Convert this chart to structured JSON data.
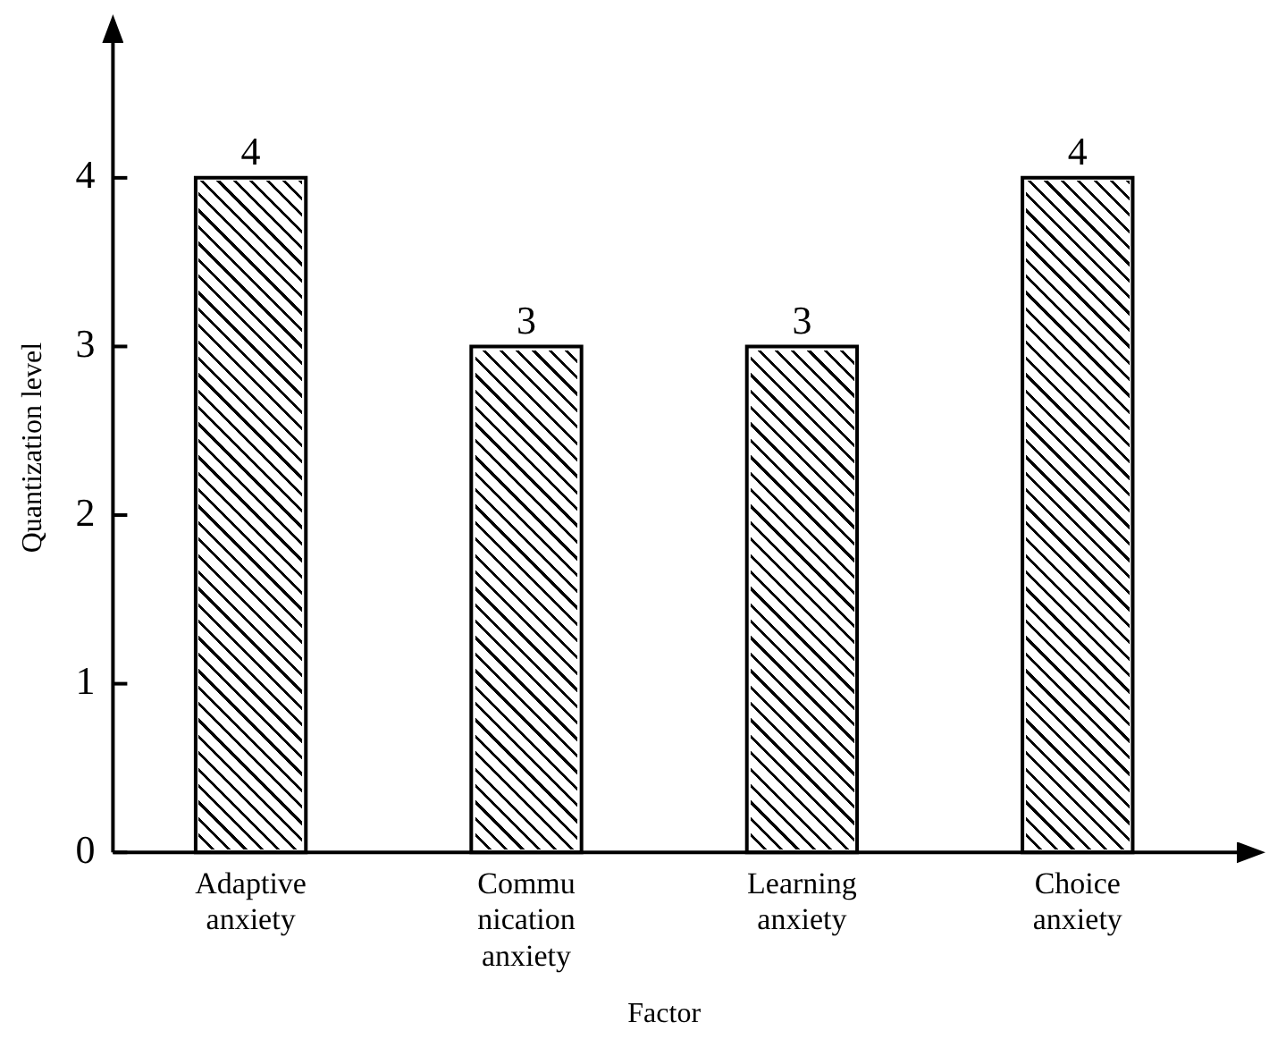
{
  "chart_data": {
    "type": "bar",
    "categories": [
      "Adaptive\nanxiety",
      "Commu\nnication\nanxiety",
      "Learning\nanxiety",
      "Choice\nanxiety"
    ],
    "values": [
      4,
      3,
      3,
      4
    ],
    "color": "#ffffff",
    "xlabel": "Factor",
    "ylabel": "Quantization level",
    "ylim": [
      0,
      4.8
    ],
    "yticks": [
      0,
      1,
      2,
      3,
      4
    ],
    "grid": false,
    "legend": false,
    "data_labels": true
  }
}
